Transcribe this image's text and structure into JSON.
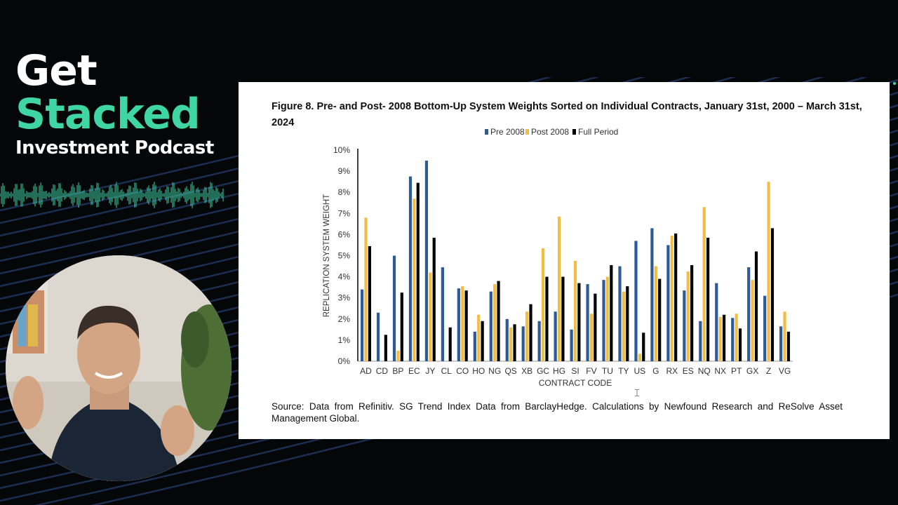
{
  "podcast": {
    "line1": "Get",
    "line2": "Stacked",
    "line3": "Investment Podcast",
    "accent_color": "#3fd6a4"
  },
  "slide": {
    "title": "Figure 8. Pre- and Post- 2008 Bottom-Up System Weights Sorted on Individual Contracts, January 31st, 2000 – March 31st, 2024",
    "source": "Source: Data from Refinitiv. SG Trend Index Data from BarclayHedge. Calculations by Newfound Research and ReSolve Asset Management Global."
  },
  "chart_data": {
    "type": "bar",
    "xlabel": "CONTRACT CODE",
    "ylabel": "REPLICATION SYSTEM WEIGHT",
    "ylim": [
      0,
      10
    ],
    "yticks": [
      "0%",
      "1%",
      "2%",
      "3%",
      "4%",
      "5%",
      "6%",
      "7%",
      "8%",
      "9%",
      "10%"
    ],
    "legend_position": "top-center",
    "grid": false,
    "categories": [
      "AD",
      "CD",
      "BP",
      "EC",
      "JY",
      "CL",
      "CO",
      "HO",
      "NG",
      "QS",
      "XB",
      "GC",
      "HG",
      "SI",
      "FV",
      "TU",
      "TY",
      "US",
      "G",
      "RX",
      "ES",
      "NQ",
      "NX",
      "PT",
      "GX",
      "Z",
      "VG"
    ],
    "series": [
      {
        "name": "Pre 2008",
        "color": "#2e5a95",
        "values": [
          3.4,
          2.3,
          5.0,
          8.75,
          9.5,
          4.45,
          3.45,
          1.4,
          3.3,
          2.0,
          1.65,
          1.9,
          2.35,
          1.5,
          3.65,
          3.85,
          4.5,
          5.7,
          6.3,
          5.5,
          3.35,
          1.9,
          3.7,
          2.05,
          4.45,
          3.1,
          1.65
        ]
      },
      {
        "name": "Post 2008",
        "color": "#f2bd42",
        "values": [
          6.8,
          0.0,
          0.5,
          7.7,
          4.2,
          0.0,
          3.55,
          2.2,
          3.65,
          1.6,
          2.35,
          5.35,
          6.85,
          4.75,
          2.25,
          4.0,
          3.3,
          0.35,
          4.5,
          5.95,
          4.25,
          7.3,
          2.1,
          2.25,
          3.85,
          8.5,
          2.35
        ]
      },
      {
        "name": "Full Period",
        "color": "#000000",
        "values": [
          5.45,
          1.25,
          3.25,
          8.45,
          5.85,
          1.6,
          3.35,
          1.9,
          3.8,
          1.75,
          2.7,
          4.0,
          4.0,
          3.7,
          3.2,
          4.55,
          3.55,
          1.35,
          3.9,
          6.05,
          4.55,
          5.85,
          2.2,
          1.55,
          5.2,
          6.3,
          1.4
        ]
      }
    ]
  }
}
